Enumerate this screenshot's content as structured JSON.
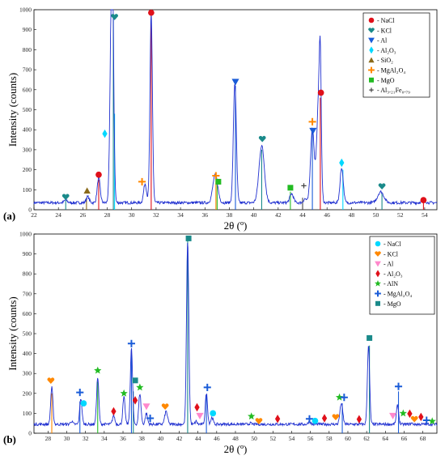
{
  "chart_data": [
    {
      "panel_label": "(a)",
      "type": "line",
      "xlabel": "2θ (º)",
      "ylabel": "Intensity (counts)",
      "xlim": [
        22,
        55
      ],
      "ylim": [
        0,
        1000
      ],
      "xticks": [
        22,
        24,
        26,
        28,
        30,
        32,
        34,
        36,
        38,
        40,
        42,
        44,
        46,
        48,
        50,
        52,
        54
      ],
      "yticks": [
        0,
        100,
        200,
        300,
        400,
        500,
        600,
        700,
        800,
        900,
        1000
      ],
      "line_color": "#2030d0",
      "baseline": 35,
      "peaks": [
        {
          "x": 24.6,
          "y": 50,
          "w": 0.12
        },
        {
          "x": 26.4,
          "y": 65,
          "w": 0.12
        },
        {
          "x": 27.3,
          "y": 160,
          "w": 0.12
        },
        {
          "x": 28.35,
          "y": 960,
          "w": 0.12
        },
        {
          "x": 28.45,
          "y": 560,
          "w": 0.1
        },
        {
          "x": 31.1,
          "y": 130,
          "w": 0.12
        },
        {
          "x": 31.6,
          "y": 980,
          "w": 0.1
        },
        {
          "x": 36.85,
          "y": 175,
          "w": 0.2
        },
        {
          "x": 38.45,
          "y": 635,
          "w": 0.12
        },
        {
          "x": 40.65,
          "y": 320,
          "w": 0.22
        },
        {
          "x": 43.1,
          "y": 80,
          "w": 0.15
        },
        {
          "x": 44.2,
          "y": 55,
          "w": 0.12
        },
        {
          "x": 44.8,
          "y": 410,
          "w": 0.15
        },
        {
          "x": 45.3,
          "y": 520,
          "w": 0.15
        },
        {
          "x": 45.45,
          "y": 560,
          "w": 0.08
        },
        {
          "x": 47.2,
          "y": 210,
          "w": 0.13
        },
        {
          "x": 50.4,
          "y": 90,
          "w": 0.25
        },
        {
          "x": 53.9,
          "y": 50,
          "w": 0.15
        }
      ],
      "sticks": [
        {
          "x": 24.6,
          "y": 50,
          "color": "#1a8a8a"
        },
        {
          "x": 26.3,
          "y": 60,
          "color": "#8a6a1a"
        },
        {
          "x": 27.3,
          "y": 150,
          "color": "#e0101a"
        },
        {
          "x": 28.5,
          "y": 960,
          "color": "#1a8a8a"
        },
        {
          "x": 28.6,
          "y": 480,
          "color": "#00d8ff"
        },
        {
          "x": 31.6,
          "y": 980,
          "color": "#e0101a"
        },
        {
          "x": 36.9,
          "y": 160,
          "color": "#ff8800"
        },
        {
          "x": 37.0,
          "y": 150,
          "color": "#22bb22"
        },
        {
          "x": 38.5,
          "y": 620,
          "color": "#1a5cd8"
        },
        {
          "x": 40.65,
          "y": 300,
          "color": "#1a8a8a"
        },
        {
          "x": 43.0,
          "y": 90,
          "color": "#22bb22"
        },
        {
          "x": 44.0,
          "y": 60,
          "color": "#444444"
        },
        {
          "x": 44.8,
          "y": 400,
          "color": "#1a5cd8"
        },
        {
          "x": 45.45,
          "y": 560,
          "color": "#e0101a"
        },
        {
          "x": 47.3,
          "y": 200,
          "color": "#00d8ff"
        },
        {
          "x": 50.5,
          "y": 80,
          "color": "#1a8a8a"
        },
        {
          "x": 53.9,
          "y": 40,
          "color": "#e0101a"
        }
      ],
      "markers": [
        {
          "x": 24.6,
          "y": 65,
          "shape": "heart",
          "color": "#1a8a8a"
        },
        {
          "x": 26.35,
          "y": 95,
          "shape": "triangle-up",
          "color": "#8a6a1a"
        },
        {
          "x": 27.3,
          "y": 175,
          "shape": "circle",
          "color": "#e0101a"
        },
        {
          "x": 27.8,
          "y": 380,
          "shape": "diamond",
          "color": "#00d8ff"
        },
        {
          "x": 28.6,
          "y": 965,
          "shape": "heart",
          "color": "#1a8a8a"
        },
        {
          "x": 30.85,
          "y": 140,
          "shape": "plus",
          "color": "#ff8800"
        },
        {
          "x": 31.6,
          "y": 985,
          "shape": "circle",
          "color": "#e0101a"
        },
        {
          "x": 36.9,
          "y": 170,
          "shape": "plus",
          "color": "#ff8800"
        },
        {
          "x": 37.1,
          "y": 140,
          "shape": "square",
          "color": "#22bb22"
        },
        {
          "x": 38.5,
          "y": 640,
          "shape": "triangle-down",
          "color": "#1a5cd8"
        },
        {
          "x": 40.7,
          "y": 355,
          "shape": "heart",
          "color": "#1a8a8a"
        },
        {
          "x": 43.0,
          "y": 110,
          "shape": "square",
          "color": "#22bb22"
        },
        {
          "x": 44.1,
          "y": 120,
          "shape": "cross",
          "color": "#444444"
        },
        {
          "x": 44.8,
          "y": 440,
          "shape": "plus",
          "color": "#ff8800"
        },
        {
          "x": 44.85,
          "y": 395,
          "shape": "triangle-down",
          "color": "#1a5cd8"
        },
        {
          "x": 45.5,
          "y": 585,
          "shape": "circle",
          "color": "#e0101a"
        },
        {
          "x": 47.2,
          "y": 235,
          "shape": "diamond",
          "color": "#00d8ff"
        },
        {
          "x": 50.5,
          "y": 118,
          "shape": "heart",
          "color": "#1a8a8a"
        },
        {
          "x": 53.9,
          "y": 48,
          "shape": "circle",
          "color": "#e0101a"
        }
      ],
      "legend": {
        "placement": "top-right",
        "entries": [
          {
            "label": "- NaCl",
            "shape": "circle",
            "color": "#e0101a"
          },
          {
            "label": "- KCl",
            "shape": "heart",
            "color": "#1a8a8a"
          },
          {
            "label": "- Al",
            "shape": "triangle-down",
            "color": "#1a5cd8"
          },
          {
            "label": "- Al₂O₃",
            "shape": "diamond",
            "color": "#00d8ff"
          },
          {
            "label": "- SiO₂",
            "shape": "triangle-up",
            "color": "#8a6a1a"
          },
          {
            "label": "- MgAl₂O₄",
            "shape": "plus",
            "color": "#ff8800"
          },
          {
            "label": "- MgO",
            "shape": "square",
            "color": "#22bb22"
          },
          {
            "label": "- Al₃.₂₁Fe₀.₇₉",
            "shape": "cross",
            "color": "#444444"
          }
        ]
      }
    },
    {
      "panel_label": "(b)",
      "type": "line",
      "xlabel": "2θ (º)",
      "ylabel": "Intensity (counts)",
      "xlim": [
        26.5,
        69.5
      ],
      "ylim": [
        0,
        1000
      ],
      "xticks": [
        28,
        30,
        32,
        34,
        36,
        38,
        40,
        42,
        44,
        46,
        48,
        50,
        52,
        54,
        56,
        58,
        60,
        62,
        64,
        66,
        68
      ],
      "yticks": [
        0,
        100,
        200,
        300,
        400,
        500,
        600,
        700,
        800,
        900,
        1000
      ],
      "line_color": "#2030d0",
      "baseline": 45,
      "peaks": [
        {
          "x": 28.4,
          "y": 230,
          "w": 0.12
        },
        {
          "x": 30.5,
          "y": 60,
          "w": 0.12
        },
        {
          "x": 31.5,
          "y": 175,
          "w": 0.12
        },
        {
          "x": 33.3,
          "y": 280,
          "w": 0.12
        },
        {
          "x": 35.0,
          "y": 90,
          "w": 0.12
        },
        {
          "x": 36.1,
          "y": 180,
          "w": 0.12
        },
        {
          "x": 36.9,
          "y": 425,
          "w": 0.12
        },
        {
          "x": 37.8,
          "y": 200,
          "w": 0.12
        },
        {
          "x": 38.5,
          "y": 100,
          "w": 0.12
        },
        {
          "x": 40.6,
          "y": 110,
          "w": 0.15
        },
        {
          "x": 42.9,
          "y": 965,
          "w": 0.12
        },
        {
          "x": 43.8,
          "y": 60,
          "w": 0.1
        },
        {
          "x": 44.9,
          "y": 200,
          "w": 0.12
        },
        {
          "x": 45.5,
          "y": 80,
          "w": 0.12
        },
        {
          "x": 49.6,
          "y": 50,
          "w": 0.12
        },
        {
          "x": 50.4,
          "y": 45,
          "w": 0.12
        },
        {
          "x": 55.9,
          "y": 60,
          "w": 0.12
        },
        {
          "x": 59.3,
          "y": 150,
          "w": 0.15
        },
        {
          "x": 62.2,
          "y": 440,
          "w": 0.12
        },
        {
          "x": 65.3,
          "y": 140,
          "w": 0.12
        },
        {
          "x": 66.8,
          "y": 50,
          "w": 0.12
        },
        {
          "x": 67.9,
          "y": 45,
          "w": 0.12
        }
      ],
      "sticks": [
        {
          "x": 28.4,
          "y": 200,
          "color": "#ff8800"
        },
        {
          "x": 31.4,
          "y": 160,
          "color": "#1a5cd8"
        },
        {
          "x": 33.3,
          "y": 260,
          "color": "#22bb22"
        },
        {
          "x": 36.9,
          "y": 400,
          "color": "#1a5cd8"
        },
        {
          "x": 37.1,
          "y": 210,
          "color": "#1a8a8a"
        },
        {
          "x": 42.9,
          "y": 970,
          "color": "#1a8a8a"
        },
        {
          "x": 44.9,
          "y": 190,
          "color": "#1a5cd8"
        },
        {
          "x": 59.4,
          "y": 150,
          "color": "#1a5cd8"
        },
        {
          "x": 62.3,
          "y": 440,
          "color": "#1a8a8a"
        },
        {
          "x": 65.4,
          "y": 210,
          "color": "#1a5cd8"
        }
      ],
      "markers": [
        {
          "x": 28.3,
          "y": 265,
          "shape": "heart",
          "color": "#ff8800"
        },
        {
          "x": 31.4,
          "y": 205,
          "shape": "plus",
          "color": "#1a5cd8"
        },
        {
          "x": 31.8,
          "y": 150,
          "shape": "circle",
          "color": "#00d8ff"
        },
        {
          "x": 33.3,
          "y": 315,
          "shape": "star",
          "color": "#22bb22"
        },
        {
          "x": 35.0,
          "y": 110,
          "shape": "diamond",
          "color": "#e0101a"
        },
        {
          "x": 36.1,
          "y": 200,
          "shape": "star",
          "color": "#22bb22"
        },
        {
          "x": 36.9,
          "y": 450,
          "shape": "plus",
          "color": "#1a5cd8"
        },
        {
          "x": 37.3,
          "y": 165,
          "shape": "diamond",
          "color": "#e0101a"
        },
        {
          "x": 37.3,
          "y": 265,
          "shape": "square",
          "color": "#1a8a8a"
        },
        {
          "x": 37.8,
          "y": 230,
          "shape": "star",
          "color": "#22bb22"
        },
        {
          "x": 38.5,
          "y": 135,
          "shape": "triangle-down",
          "color": "#ff88cc"
        },
        {
          "x": 38.9,
          "y": 75,
          "shape": "plus",
          "color": "#1a5cd8"
        },
        {
          "x": 40.5,
          "y": 135,
          "shape": "heart",
          "color": "#ff8800"
        },
        {
          "x": 43.0,
          "y": 978,
          "shape": "square",
          "color": "#1a8a8a"
        },
        {
          "x": 43.9,
          "y": 130,
          "shape": "diamond",
          "color": "#e0101a"
        },
        {
          "x": 44.2,
          "y": 88,
          "shape": "triangle-down",
          "color": "#ff88cc"
        },
        {
          "x": 45.0,
          "y": 230,
          "shape": "plus",
          "color": "#1a5cd8"
        },
        {
          "x": 45.6,
          "y": 100,
          "shape": "circle",
          "color": "#00d8ff"
        },
        {
          "x": 49.7,
          "y": 85,
          "shape": "star",
          "color": "#22bb22"
        },
        {
          "x": 50.5,
          "y": 62,
          "shape": "heart",
          "color": "#ff8800"
        },
        {
          "x": 52.5,
          "y": 72,
          "shape": "diamond",
          "color": "#e0101a"
        },
        {
          "x": 55.9,
          "y": 72,
          "shape": "plus",
          "color": "#1a5cd8"
        },
        {
          "x": 56.5,
          "y": 62,
          "shape": "circle",
          "color": "#00d8ff"
        },
        {
          "x": 57.5,
          "y": 75,
          "shape": "diamond",
          "color": "#e0101a"
        },
        {
          "x": 58.7,
          "y": 82,
          "shape": "heart",
          "color": "#ff8800"
        },
        {
          "x": 59.1,
          "y": 180,
          "shape": "star",
          "color": "#22bb22"
        },
        {
          "x": 59.6,
          "y": 180,
          "shape": "plus",
          "color": "#1a5cd8"
        },
        {
          "x": 61.2,
          "y": 70,
          "shape": "diamond",
          "color": "#e0101a"
        },
        {
          "x": 62.3,
          "y": 478,
          "shape": "square",
          "color": "#1a8a8a"
        },
        {
          "x": 64.8,
          "y": 88,
          "shape": "triangle-down",
          "color": "#ff88cc"
        },
        {
          "x": 65.4,
          "y": 235,
          "shape": "plus",
          "color": "#1a5cd8"
        },
        {
          "x": 65.9,
          "y": 100,
          "shape": "star",
          "color": "#22bb22"
        },
        {
          "x": 66.6,
          "y": 98,
          "shape": "diamond",
          "color": "#e0101a"
        },
        {
          "x": 67.1,
          "y": 72,
          "shape": "heart",
          "color": "#ff8800"
        },
        {
          "x": 67.8,
          "y": 82,
          "shape": "diamond",
          "color": "#e0101a"
        },
        {
          "x": 68.4,
          "y": 65,
          "shape": "plus",
          "color": "#1a5cd8"
        },
        {
          "x": 69.0,
          "y": 60,
          "shape": "star",
          "color": "#22bb22"
        }
      ],
      "legend": {
        "placement": "top-right",
        "entries": [
          {
            "label": "- NaCl",
            "shape": "circle",
            "color": "#00d8ff"
          },
          {
            "label": "- KCl",
            "shape": "heart",
            "color": "#ff8800"
          },
          {
            "label": "- Al",
            "shape": "triangle-down",
            "color": "#ff88cc"
          },
          {
            "label": "- Al₂O₃",
            "shape": "diamond",
            "color": "#e0101a"
          },
          {
            "label": "- AlN",
            "shape": "star",
            "color": "#22bb22"
          },
          {
            "label": "- MgAl₂O₄",
            "shape": "plus",
            "color": "#1a5cd8"
          },
          {
            "label": "- MgO",
            "shape": "square",
            "color": "#1a8a8a"
          }
        ]
      }
    }
  ]
}
